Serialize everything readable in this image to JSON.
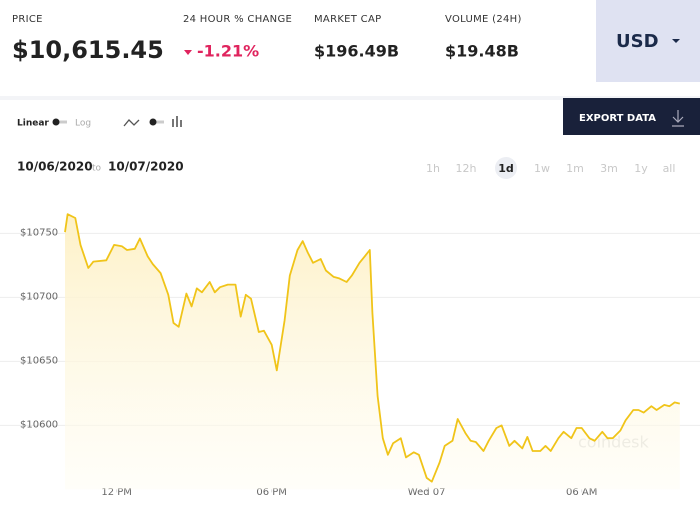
{
  "header": {
    "price_label": "PRICE",
    "price": "$10,615.45",
    "change_label": "24 HOUR % CHANGE",
    "change": "-1.21%",
    "market_cap_label": "MARKET CAP",
    "market_cap": "$196.49B",
    "volume_label": "VOLUME (24H)",
    "volume": "$19.48B",
    "currency": "USD"
  },
  "controls": {
    "linear": "Linear",
    "log": "Log",
    "export": "EXPORT DATA"
  },
  "date_range": {
    "from": "10/06/2020",
    "to_word": "to",
    "to": "10/07/2020"
  },
  "ranges": [
    "1h",
    "12h",
    "1d",
    "1w",
    "1m",
    "3m",
    "1y",
    "all"
  ],
  "chart_data": {
    "type": "line",
    "watermark": "coindesk",
    "color": "#f0c419",
    "x": [
      10.0,
      10.1,
      10.4,
      10.6,
      10.9,
      11.1,
      11.6,
      11.9,
      12.2,
      12.4,
      12.7,
      12.9,
      13.2,
      13.4,
      13.7,
      14.0,
      14.2,
      14.4,
      14.7,
      14.9,
      15.1,
      15.3,
      15.6,
      15.8,
      16.0,
      16.3,
      16.6,
      16.8,
      17.0,
      17.2,
      17.5,
      17.7,
      18.0,
      18.2,
      18.5,
      18.7,
      19.0,
      19.2,
      19.4,
      19.6,
      19.9,
      20.1,
      20.4,
      20.6,
      20.9,
      21.1,
      21.4,
      21.6,
      21.8,
      21.9,
      22.1,
      22.3,
      22.5,
      22.7,
      23.0,
      23.2,
      23.5,
      23.7,
      24.0,
      24.2,
      24.5,
      24.7,
      25.0,
      25.2,
      25.5,
      25.7,
      25.9,
      26.2,
      26.4,
      26.7,
      26.9,
      27.2,
      27.4,
      27.7,
      27.9,
      28.1,
      28.4,
      28.6,
      28.8,
      29.1,
      29.3,
      29.6,
      29.8,
      30.0,
      30.3,
      30.5,
      30.8,
      31.0,
      31.2,
      31.5,
      31.7,
      32.0,
      32.2,
      32.4,
      32.7,
      32.9,
      33.2,
      33.4,
      33.6,
      33.8
    ],
    "values": [
      10751,
      10765,
      10762,
      10741,
      10723,
      10728,
      10729,
      10741,
      10740,
      10737,
      10738,
      10746,
      10732,
      10726,
      10719,
      10702,
      10680,
      10677,
      10703,
      10693,
      10707,
      10704,
      10712,
      10704,
      10708,
      10710,
      10710,
      10685,
      10702,
      10699,
      10673,
      10674,
      10663,
      10643,
      10682,
      10717,
      10737,
      10744,
      10735,
      10727,
      10730,
      10721,
      10716,
      10715,
      10712,
      10717,
      10727,
      10732,
      10737,
      10688,
      10623,
      10590,
      10577,
      10586,
      10590,
      10575,
      10579,
      10577,
      10559,
      10556,
      10571,
      10584,
      10588,
      10605,
      10594,
      10588,
      10587,
      10580,
      10588,
      10598,
      10600,
      10584,
      10588,
      10582,
      10591,
      10580,
      10580,
      10584,
      10580,
      10590,
      10595,
      10590,
      10598,
      10598,
      10590,
      10588,
      10595,
      10590,
      10590,
      10596,
      10604,
      10612,
      10612,
      10610,
      10615,
      10612,
      10616,
      10615,
      10618,
      10617
    ],
    "xlim": [
      10,
      34
    ],
    "xticks": [
      {
        "value": 12,
        "label": "12 PM"
      },
      {
        "value": 18,
        "label": "06 PM"
      },
      {
        "value": 24,
        "label": "Wed 07"
      },
      {
        "value": 30,
        "label": "06 AM"
      }
    ],
    "ylim": [
      10550,
      10780
    ],
    "yticks": [
      {
        "value": 10600,
        "label": "$10600"
      },
      {
        "value": 10650,
        "label": "$10650"
      },
      {
        "value": 10700,
        "label": "$10700"
      },
      {
        "value": 10750,
        "label": "$10750"
      }
    ],
    "grid": true
  }
}
